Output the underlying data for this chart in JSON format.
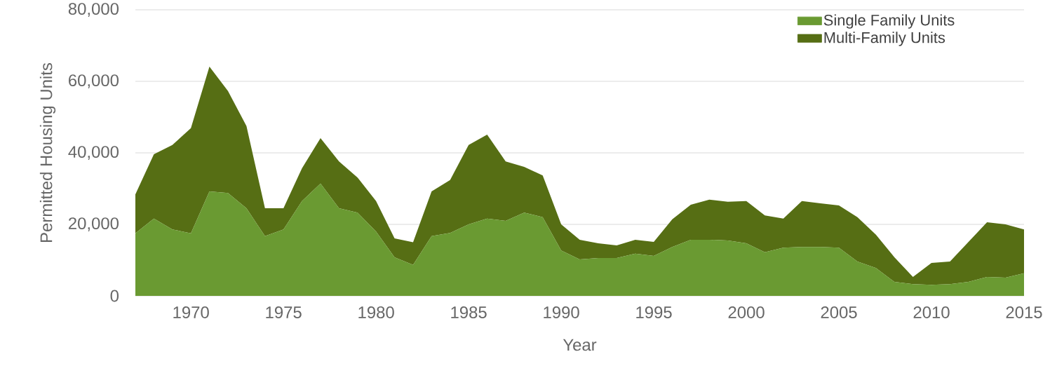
{
  "chart_data": {
    "type": "area",
    "stacked": true,
    "xlabel": "Year",
    "ylabel": "Permitted Housing Units",
    "x": [
      1967,
      1968,
      1969,
      1970,
      1971,
      1972,
      1973,
      1974,
      1975,
      1976,
      1977,
      1978,
      1979,
      1980,
      1981,
      1982,
      1983,
      1984,
      1985,
      1986,
      1987,
      1988,
      1989,
      1990,
      1991,
      1992,
      1993,
      1994,
      1995,
      1996,
      1997,
      1998,
      1999,
      2000,
      2001,
      2002,
      2003,
      2004,
      2005,
      2006,
      2007,
      2008,
      2009,
      2010,
      2011,
      2012,
      2013,
      2014,
      2015
    ],
    "series": [
      {
        "name": "Single Family Units",
        "color": "#6a9a32",
        "values": [
          17500,
          21600,
          18600,
          17500,
          29200,
          28800,
          24500,
          16700,
          18600,
          26500,
          31400,
          24500,
          23300,
          18000,
          10800,
          8700,
          16700,
          17600,
          20000,
          21600,
          21000,
          23300,
          22000,
          12700,
          10200,
          10600,
          10600,
          11800,
          11200,
          13700,
          15700,
          15700,
          15500,
          14700,
          12200,
          13500,
          13700,
          13700,
          13500,
          9600,
          7800,
          3900,
          3300,
          3100,
          3300,
          3900,
          5300,
          5100,
          6300
        ]
      },
      {
        "name": "Multi-Family Units",
        "color": "#566e14",
        "values": [
          10900,
          18000,
          23600,
          29400,
          34900,
          28500,
          23000,
          7800,
          5900,
          9200,
          12700,
          13100,
          9800,
          8500,
          5300,
          6300,
          12500,
          14800,
          22200,
          23500,
          16600,
          12800,
          11700,
          7300,
          5500,
          4100,
          3500,
          3900,
          3900,
          7700,
          9800,
          11200,
          10800,
          11800,
          10300,
          8100,
          12800,
          12200,
          11800,
          12400,
          9300,
          6900,
          2000,
          6100,
          6300,
          11200,
          15300,
          14900,
          12300
        ]
      }
    ],
    "xlim": [
      1967,
      2015
    ],
    "xticks": [
      1970,
      1975,
      1980,
      1985,
      1990,
      1995,
      2000,
      2005,
      2010,
      2015
    ],
    "ylim": [
      0,
      80000
    ],
    "yticks": [
      {
        "value": 0,
        "label": "0"
      },
      {
        "value": 20000,
        "label": "20,000"
      },
      {
        "value": 40000,
        "label": "40,000"
      },
      {
        "value": 60000,
        "label": "60,000"
      },
      {
        "value": 80000,
        "label": "80,000"
      }
    ],
    "grid": "y",
    "legend": "top right"
  }
}
